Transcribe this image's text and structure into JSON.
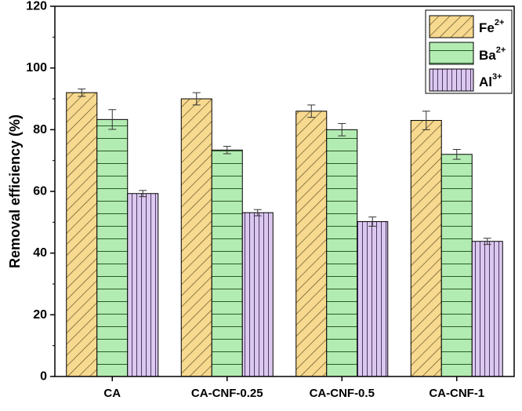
{
  "chart_data": {
    "type": "bar",
    "title": "",
    "xlabel": "",
    "ylabel": "Removal efficiency (%)",
    "ylim": [
      0,
      120
    ],
    "yticks": [
      0,
      20,
      40,
      60,
      80,
      100,
      120
    ],
    "grid": false,
    "legend_position": "top-right",
    "categories": [
      "CA",
      "CA-CNF-0.25",
      "CA-CNF-0.5",
      "CA-CNF-1"
    ],
    "series": [
      {
        "name": "Fe",
        "charge": "2+",
        "color": "#f7d98f",
        "pattern": "diagonal-hatch",
        "values": [
          92,
          90,
          86,
          83
        ],
        "errors": [
          1.2,
          2.0,
          2.0,
          3.0
        ]
      },
      {
        "name": "Ba",
        "charge": "2+",
        "color": "#b3ecb3",
        "pattern": "horizontal-lines",
        "values": [
          83.3,
          73.4,
          80,
          72
        ],
        "errors": [
          3.2,
          1.2,
          2.0,
          1.6
        ]
      },
      {
        "name": "Al",
        "charge": "3+",
        "color": "#dcc8ee",
        "pattern": "vertical-lines",
        "values": [
          59.3,
          53.1,
          50.2,
          43.8
        ],
        "errors": [
          1.0,
          1.0,
          1.5,
          1.0
        ]
      }
    ]
  }
}
